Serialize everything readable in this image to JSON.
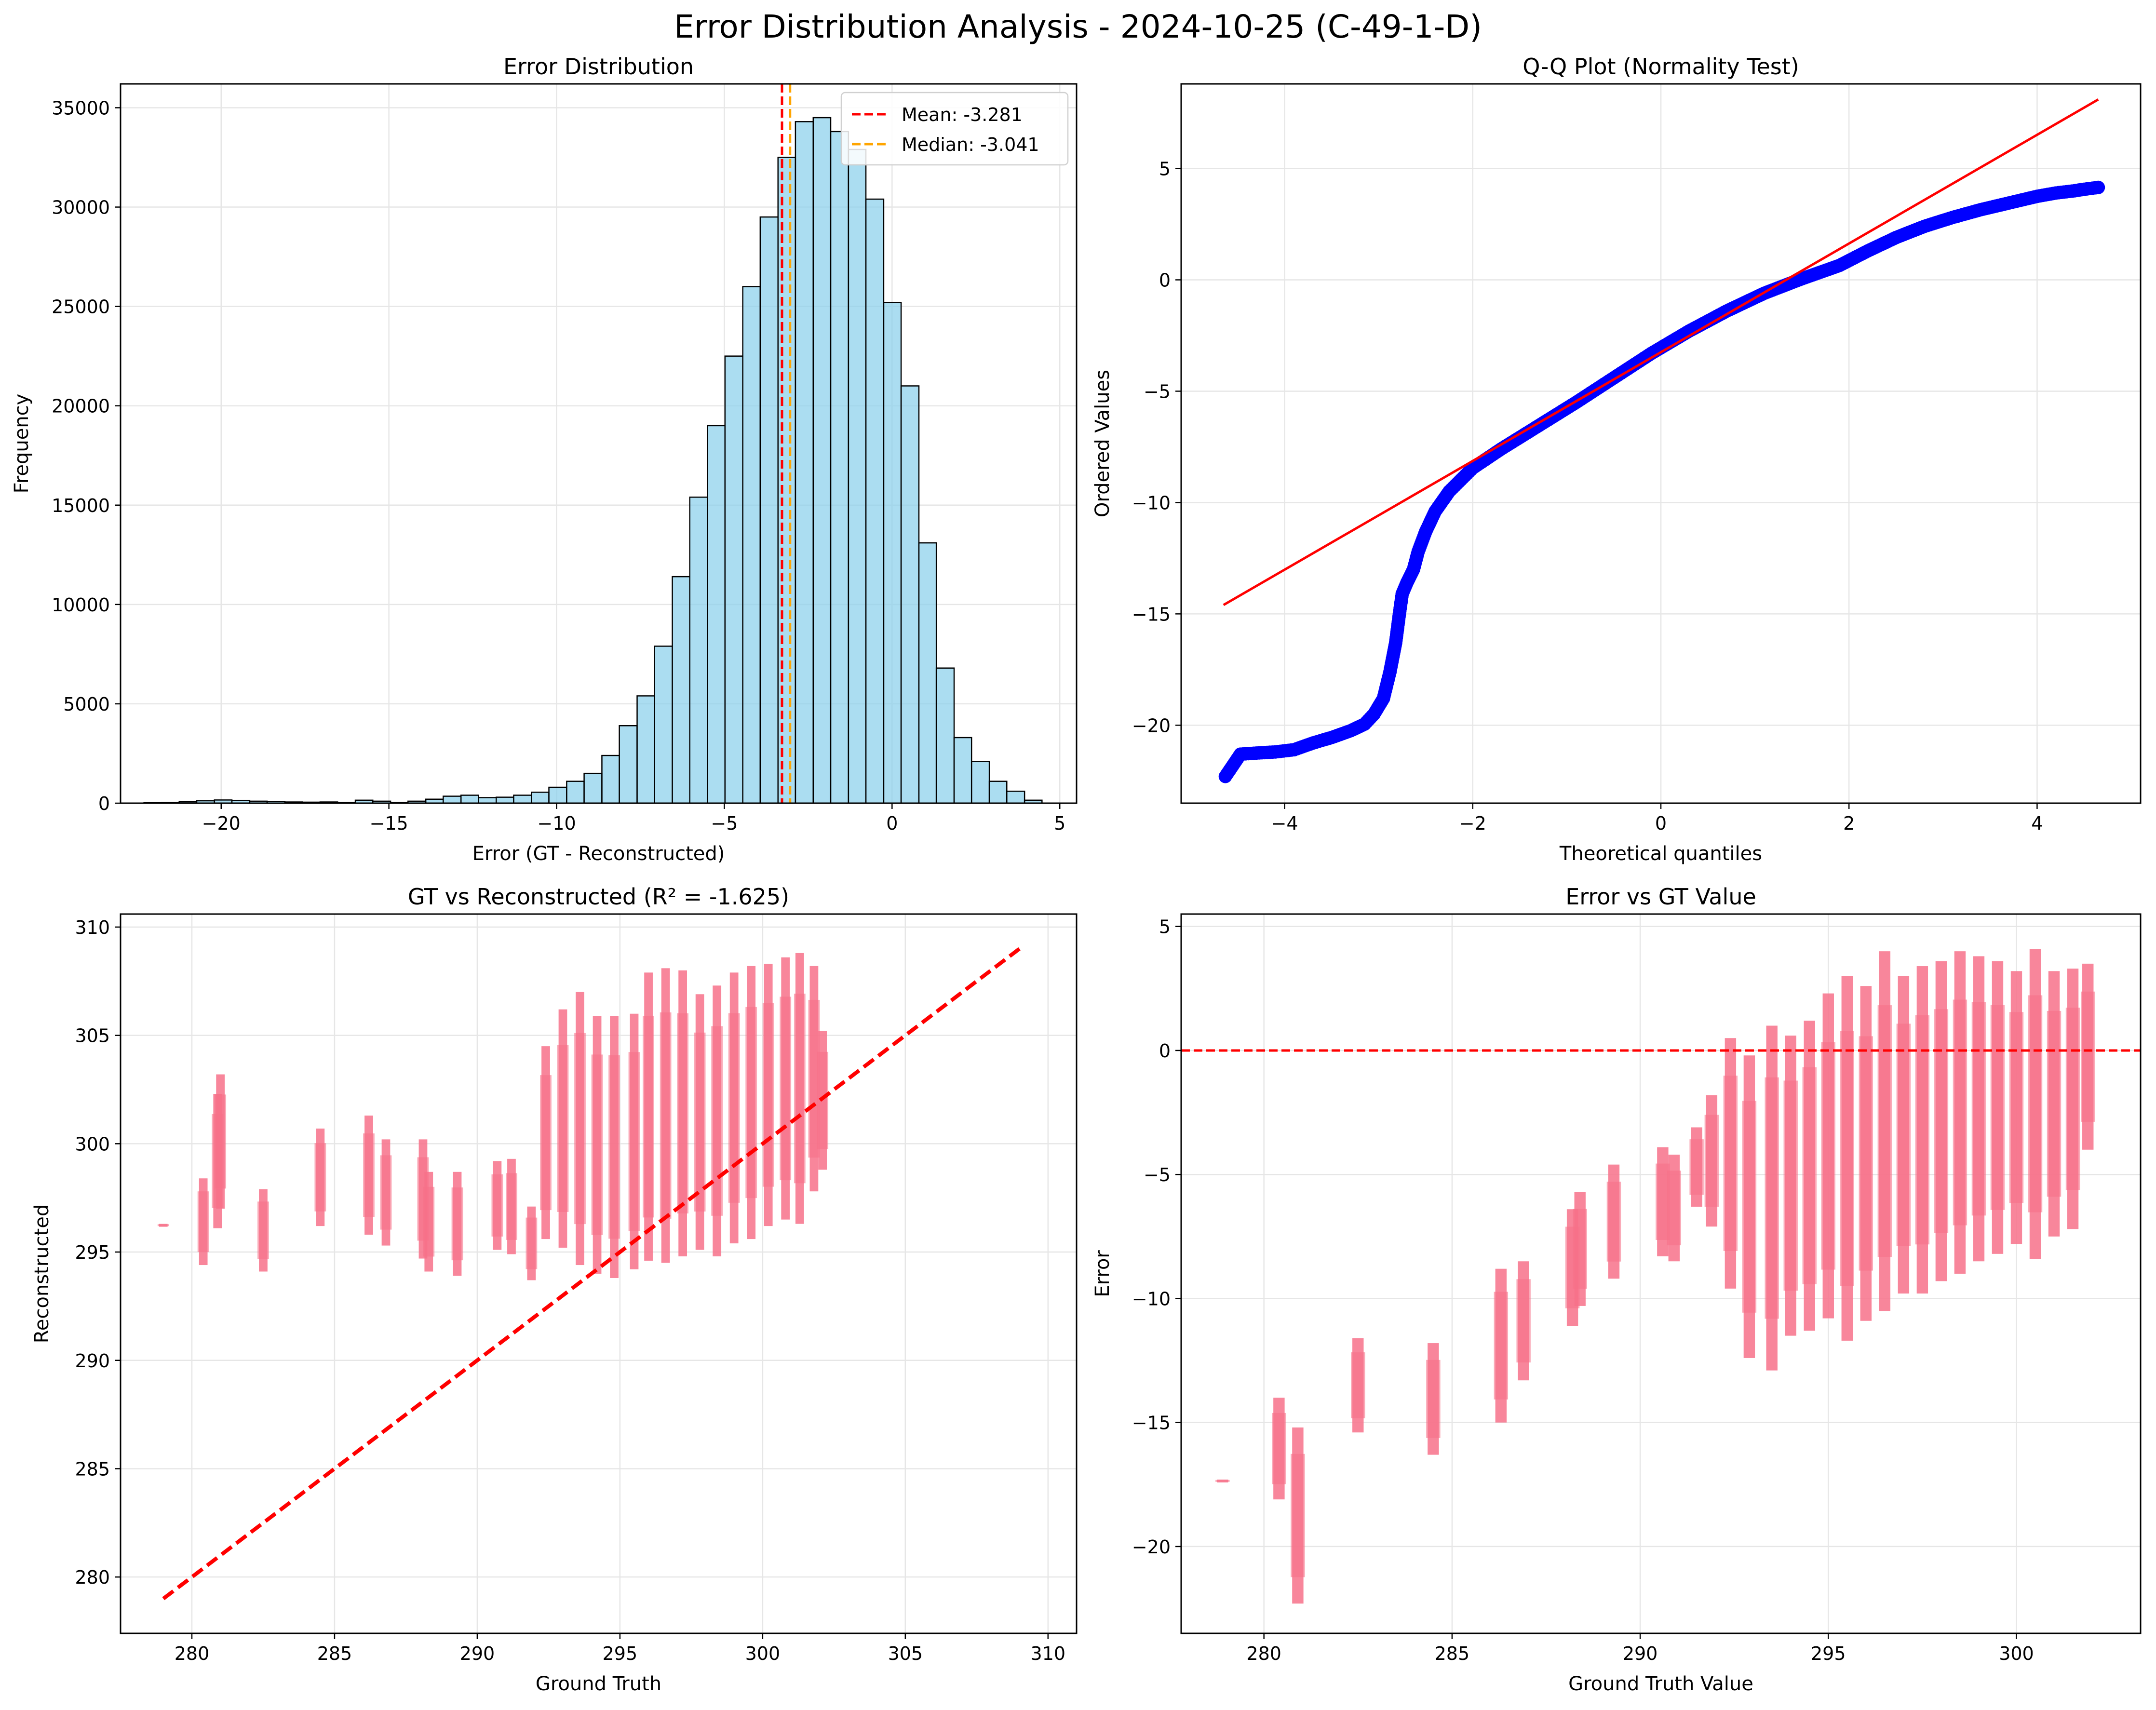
{
  "suptitle": "Error Distribution Analysis - 2024-10-25 (C-49-1-D)",
  "chart_data": [
    {
      "type": "bar",
      "subtype": "histogram",
      "title": "Error Distribution",
      "xlabel": "Error (GT - Reconstructed)",
      "ylabel": "Frequency",
      "xlim": [
        -23,
        5.5
      ],
      "ylim": [
        0,
        36200
      ],
      "xticks": [
        -20,
        -15,
        -10,
        -5,
        0,
        5
      ],
      "yticks": [
        0,
        5000,
        10000,
        15000,
        20000,
        25000,
        30000,
        35000
      ],
      "grid": true,
      "bar_color": "#87CEEB",
      "bin_edges": [
        -22.3,
        -21.78,
        -21.25,
        -20.73,
        -20.2,
        -19.68,
        -19.15,
        -18.63,
        -18.1,
        -17.58,
        -17.05,
        -16.53,
        -16.0,
        -15.48,
        -14.95,
        -14.43,
        -13.9,
        -13.38,
        -12.85,
        -12.33,
        -11.8,
        -11.28,
        -10.75,
        -10.23,
        -9.7,
        -9.18,
        -8.65,
        -8.13,
        -7.6,
        -7.08,
        -6.55,
        -6.03,
        -5.5,
        -4.98,
        -4.45,
        -3.93,
        -3.4,
        -2.88,
        -2.35,
        -1.83,
        -1.3,
        -0.78,
        -0.25,
        0.27,
        0.8,
        1.32,
        1.85,
        2.37,
        2.9,
        3.42,
        3.95,
        4.47
      ],
      "counts": [
        20,
        40,
        70,
        120,
        160,
        140,
        100,
        80,
        60,
        50,
        60,
        40,
        150,
        100,
        40,
        100,
        200,
        350,
        400,
        280,
        300,
        400,
        550,
        800,
        1100,
        1500,
        2400,
        3900,
        5400,
        7900,
        11400,
        15400,
        19000,
        22500,
        26000,
        29500,
        32500,
        34300,
        34500,
        33800,
        32900,
        30400,
        25200,
        21000,
        13100,
        6800,
        3300,
        2100,
        1100,
        600,
        150
      ],
      "lines": [
        {
          "name": "Mean: -3.281",
          "value": -3.281,
          "color": "#ff0000",
          "style": "dashed"
        },
        {
          "name": "Median: -3.041",
          "value": -3.041,
          "color": "#ffa500",
          "style": "dashed"
        }
      ],
      "legend": "top-right"
    },
    {
      "type": "scatter",
      "title": "Q-Q Plot (Normality Test)",
      "xlabel": "Theoretical quantiles",
      "ylabel": "Ordered Values",
      "xlim": [
        -5.1,
        5.1
      ],
      "ylim": [
        -23.5,
        8.8
      ],
      "xticks": [
        -4,
        -2,
        0,
        2,
        4
      ],
      "yticks": [
        -20,
        -15,
        -10,
        -5,
        0,
        5
      ],
      "grid": true,
      "points_color": "#0000ff",
      "points": [
        [
          -4.63,
          -22.3
        ],
        [
          -4.47,
          -21.3
        ],
        [
          -4.3,
          -21.25
        ],
        [
          -4.1,
          -21.2
        ],
        [
          -3.9,
          -21.1
        ],
        [
          -3.7,
          -20.8
        ],
        [
          -3.5,
          -20.55
        ],
        [
          -3.3,
          -20.25
        ],
        [
          -3.15,
          -19.95
        ],
        [
          -3.05,
          -19.5
        ],
        [
          -2.95,
          -18.8
        ],
        [
          -2.88,
          -17.6
        ],
        [
          -2.82,
          -16.3
        ],
        [
          -2.78,
          -15.0
        ],
        [
          -2.75,
          -14.1
        ],
        [
          -2.7,
          -13.6
        ],
        [
          -2.63,
          -13.0
        ],
        [
          -2.58,
          -12.2
        ],
        [
          -2.5,
          -11.3
        ],
        [
          -2.4,
          -10.4
        ],
        [
          -2.25,
          -9.5
        ],
        [
          -2.0,
          -8.45
        ],
        [
          -1.7,
          -7.6
        ],
        [
          -1.3,
          -6.55
        ],
        [
          -0.9,
          -5.5
        ],
        [
          -0.5,
          -4.4
        ],
        [
          -0.1,
          -3.3
        ],
        [
          0.3,
          -2.3
        ],
        [
          0.7,
          -1.4
        ],
        [
          1.1,
          -0.6
        ],
        [
          1.5,
          0.05
        ],
        [
          1.9,
          0.65
        ],
        [
          2.2,
          1.3
        ],
        [
          2.5,
          1.9
        ],
        [
          2.8,
          2.4
        ],
        [
          3.1,
          2.8
        ],
        [
          3.4,
          3.15
        ],
        [
          3.7,
          3.45
        ],
        [
          4.0,
          3.75
        ],
        [
          4.2,
          3.9
        ],
        [
          4.4,
          4.0
        ],
        [
          4.47,
          4.05
        ],
        [
          4.65,
          4.15
        ]
      ],
      "fit_line": {
        "x": [
          -4.65,
          4.65
        ],
        "y": [
          -14.6,
          8.1
        ],
        "color": "#ff0000"
      }
    },
    {
      "type": "scatter",
      "title": "GT vs Reconstructed (R² = -1.625)",
      "xlabel": "Ground Truth",
      "ylabel": "Reconstructed",
      "xlim": [
        277.5,
        311
      ],
      "ylim": [
        277.4,
        310.6
      ],
      "xticks": [
        280,
        285,
        290,
        295,
        300,
        305,
        310
      ],
      "yticks": [
        280,
        285,
        290,
        295,
        300,
        305,
        310
      ],
      "grid": true,
      "points_color": "#f77189",
      "strips": [
        [
          279.0,
          296.2,
          296.3
        ],
        [
          280.4,
          294.4,
          298.4
        ],
        [
          280.9,
          296.1,
          302.3
        ],
        [
          281.0,
          297.0,
          303.2
        ],
        [
          282.5,
          294.1,
          297.9
        ],
        [
          284.5,
          296.2,
          300.7
        ],
        [
          286.2,
          295.8,
          301.3
        ],
        [
          286.8,
          295.3,
          300.2
        ],
        [
          288.1,
          294.7,
          300.2
        ],
        [
          288.3,
          294.1,
          298.7
        ],
        [
          289.3,
          293.9,
          298.7
        ],
        [
          290.7,
          295.1,
          299.2
        ],
        [
          291.2,
          294.9,
          299.3
        ],
        [
          291.9,
          293.7,
          297.1
        ],
        [
          292.4,
          295.6,
          304.5
        ],
        [
          293.0,
          295.2,
          306.2
        ],
        [
          293.6,
          294.4,
          307.0
        ],
        [
          294.2,
          294.0,
          305.9
        ],
        [
          294.8,
          293.8,
          305.9
        ],
        [
          295.5,
          294.2,
          306.0
        ],
        [
          296.0,
          294.6,
          307.9
        ],
        [
          296.6,
          294.5,
          308.1
        ],
        [
          297.2,
          294.8,
          308.0
        ],
        [
          297.8,
          295.1,
          306.9
        ],
        [
          298.4,
          294.8,
          307.3
        ],
        [
          299.0,
          295.4,
          307.9
        ],
        [
          299.6,
          295.6,
          308.2
        ],
        [
          300.2,
          296.2,
          308.3
        ],
        [
          300.8,
          296.5,
          308.6
        ],
        [
          301.3,
          296.3,
          308.8
        ],
        [
          301.8,
          297.8,
          308.2
        ],
        [
          302.1,
          298.8,
          305.2
        ]
      ],
      "fit_line": {
        "x": [
          279,
          309
        ],
        "y": [
          279,
          309
        ],
        "color": "#ff0000",
        "style": "dashed"
      }
    },
    {
      "type": "scatter",
      "title": "Error vs GT Value",
      "xlabel": "Ground Truth Value",
      "ylabel": "Error",
      "xlim": [
        277.8,
        303.3
      ],
      "ylim": [
        -23.5,
        5.5
      ],
      "xticks": [
        280,
        285,
        290,
        295,
        300
      ],
      "yticks": [
        -20,
        -15,
        -10,
        -5,
        0,
        5
      ],
      "grid": true,
      "points_color": "#f77189",
      "strips": [
        [
          278.9,
          -17.4,
          -17.3
        ],
        [
          280.4,
          -18.1,
          -14.0
        ],
        [
          280.9,
          -22.3,
          -15.2
        ],
        [
          282.5,
          -15.4,
          -11.6
        ],
        [
          284.5,
          -16.3,
          -11.8
        ],
        [
          286.3,
          -15.0,
          -8.8
        ],
        [
          286.9,
          -13.3,
          -8.5
        ],
        [
          288.2,
          -11.1,
          -6.4
        ],
        [
          288.4,
          -10.3,
          -5.7
        ],
        [
          289.3,
          -9.2,
          -4.6
        ],
        [
          290.6,
          -8.3,
          -3.9
        ],
        [
          290.9,
          -8.5,
          -4.2
        ],
        [
          291.5,
          -6.3,
          -3.1
        ],
        [
          291.9,
          -7.1,
          -1.8
        ],
        [
          292.4,
          -9.6,
          0.5
        ],
        [
          292.9,
          -12.4,
          -0.2
        ],
        [
          293.5,
          -12.9,
          1.0
        ],
        [
          294.0,
          -11.5,
          0.6
        ],
        [
          294.5,
          -11.3,
          1.2
        ],
        [
          295.0,
          -10.8,
          2.3
        ],
        [
          295.5,
          -11.7,
          3.0
        ],
        [
          296.0,
          -10.9,
          2.6
        ],
        [
          296.5,
          -10.5,
          4.0
        ],
        [
          297.0,
          -9.8,
          3.0
        ],
        [
          297.5,
          -9.8,
          3.4
        ],
        [
          298.0,
          -9.3,
          3.6
        ],
        [
          298.5,
          -9.0,
          4.0
        ],
        [
          299.0,
          -8.5,
          3.8
        ],
        [
          299.5,
          -8.2,
          3.6
        ],
        [
          300.0,
          -7.8,
          3.2
        ],
        [
          300.5,
          -8.4,
          4.1
        ],
        [
          301.0,
          -7.5,
          3.2
        ],
        [
          301.5,
          -7.2,
          3.3
        ],
        [
          301.9,
          -4.0,
          3.5
        ]
      ],
      "zero_line": {
        "y": 0,
        "color": "#ff0000",
        "style": "dashed"
      }
    }
  ]
}
